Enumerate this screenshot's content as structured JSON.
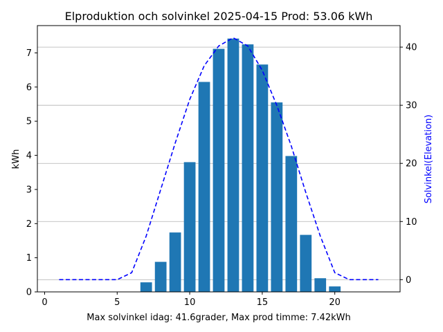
{
  "chart_data": {
    "type": "bar",
    "title": "Elproduktion och solvinkel 2025-04-15 Prod: 53.06 kWh",
    "xlabel": "Max solvinkel idag: 41.6grader, Max prod timme: 7.42kWh",
    "ylabel": "kWh",
    "y2label": "Solvinkel(Elevation)",
    "xlim": [
      -0.5,
      24.5
    ],
    "ylim": [
      0,
      7.8
    ],
    "y2lim": [
      -2.1,
      43.7
    ],
    "xticks": [
      0,
      5,
      10,
      15,
      20
    ],
    "yticks": [
      0,
      1,
      2,
      3,
      4,
      5,
      6,
      7
    ],
    "y2ticks": [
      0,
      10,
      20,
      30,
      40
    ],
    "grid": true,
    "grid_axis": "y2",
    "colors": {
      "bars": "#1f77b4",
      "line": "#0000ff",
      "grid": "#b0b0b0"
    },
    "bars": {
      "name": "kWh",
      "hours": [
        7,
        8,
        9,
        10,
        11,
        12,
        13,
        14,
        15,
        16,
        17,
        18,
        19,
        20
      ],
      "values": [
        0.28,
        0.88,
        1.74,
        3.8,
        6.15,
        7.12,
        7.42,
        7.25,
        6.66,
        5.55,
        3.98,
        1.67,
        0.4,
        0.16
      ]
    },
    "line": {
      "name": "Solvinkel(Elevation)",
      "hours": [
        1,
        2,
        3,
        4,
        5,
        6,
        7,
        8,
        9,
        10,
        11,
        12,
        13,
        14,
        15,
        16,
        17,
        18,
        19,
        20,
        21,
        22,
        23
      ],
      "values": [
        0,
        0,
        0,
        0,
        0,
        1.2,
        7.5,
        15.5,
        23.5,
        31.0,
        36.8,
        40.2,
        41.6,
        40.2,
        36.0,
        30.0,
        23.0,
        15.0,
        7.5,
        1.2,
        0,
        0,
        0
      ],
      "style": "dashed"
    }
  }
}
